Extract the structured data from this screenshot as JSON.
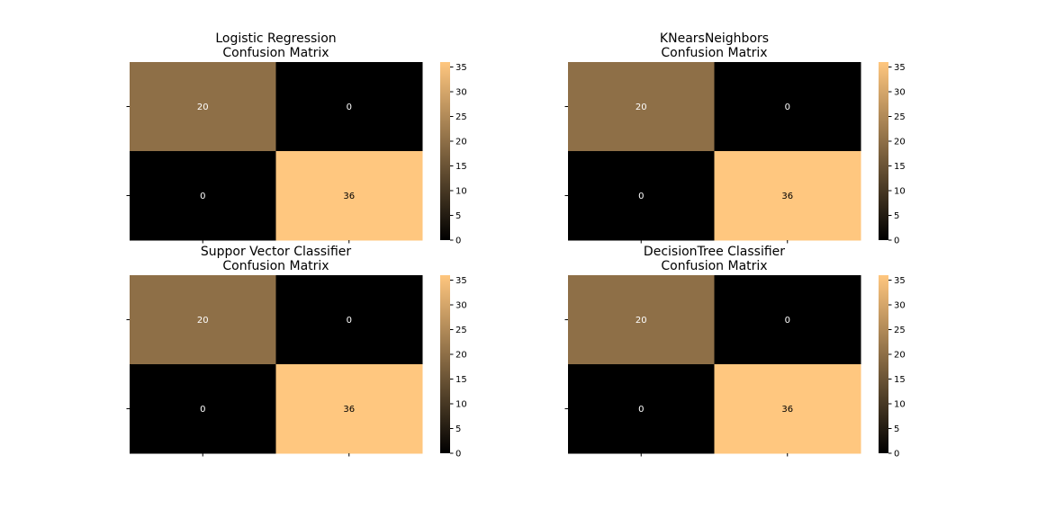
{
  "chart_data": [
    {
      "type": "heatmap",
      "title": "Logistic Regression \n Confusion Matrix",
      "title_lines": [
        "Logistic Regression",
        "Confusion Matrix"
      ],
      "matrix": [
        [
          20,
          0
        ],
        [
          0,
          36
        ]
      ],
      "xticklabels": [
        "",
        ""
      ],
      "yticklabels": [
        "",
        ""
      ],
      "colorbar": {
        "range": [
          0,
          36
        ],
        "ticks": [
          0,
          5,
          10,
          15,
          20,
          25,
          30,
          35
        ]
      }
    },
    {
      "type": "heatmap",
      "title": "KNearsNeighbors \n Confusion Matrix",
      "title_lines": [
        "KNearsNeighbors",
        "Confusion Matrix"
      ],
      "matrix": [
        [
          20,
          0
        ],
        [
          0,
          36
        ]
      ],
      "xticklabels": [
        "",
        ""
      ],
      "yticklabels": [
        "",
        ""
      ],
      "colorbar": {
        "range": [
          0,
          36
        ],
        "ticks": [
          0,
          5,
          10,
          15,
          20,
          25,
          30,
          35
        ]
      }
    },
    {
      "type": "heatmap",
      "title": "Suppor Vector Classifier \n Confusion Matrix",
      "title_lines": [
        "Suppor Vector Classifier",
        "Confusion Matrix"
      ],
      "matrix": [
        [
          20,
          0
        ],
        [
          0,
          36
        ]
      ],
      "xticklabels": [
        "",
        ""
      ],
      "yticklabels": [
        "",
        ""
      ],
      "colorbar": {
        "range": [
          0,
          36
        ],
        "ticks": [
          0,
          5,
          10,
          15,
          20,
          25,
          30,
          35
        ]
      }
    },
    {
      "type": "heatmap",
      "title": "DecisionTree Classifier \n Confusion Matrix",
      "title_lines": [
        "DecisionTree Classifier",
        "Confusion Matrix"
      ],
      "matrix": [
        [
          20,
          0
        ],
        [
          0,
          36
        ]
      ],
      "xticklabels": [
        "",
        ""
      ],
      "yticklabels": [
        "",
        ""
      ],
      "colorbar": {
        "range": [
          0,
          36
        ],
        "ticks": [
          0,
          5,
          10,
          15,
          20,
          25,
          30,
          35
        ]
      }
    }
  ],
  "colormap": {
    "name": "copper",
    "stops": [
      "#000000",
      "#ffc77f"
    ]
  },
  "colors": {
    "background": "#ffffff",
    "text_dark": "#000000",
    "text_light": "#ffffff"
  }
}
